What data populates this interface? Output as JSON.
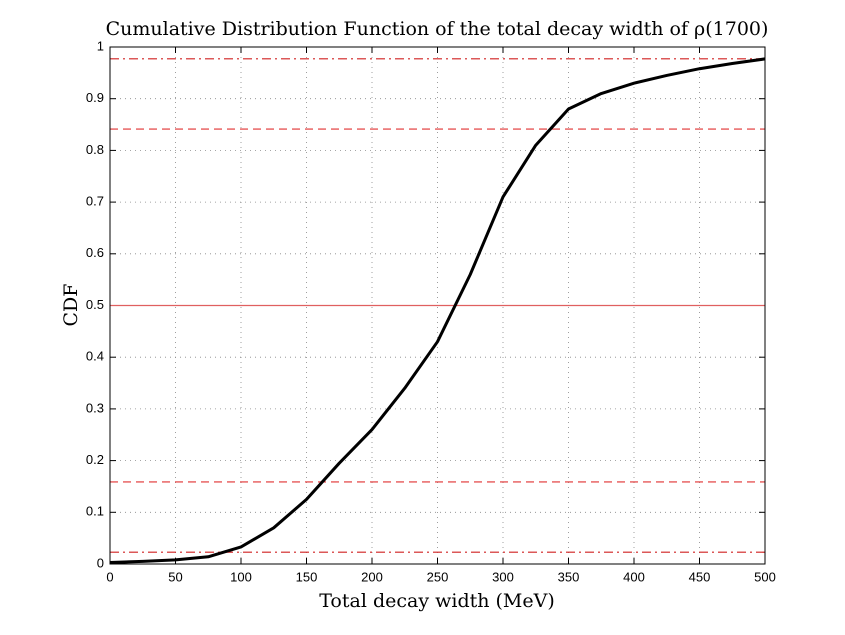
{
  "chart_data": {
    "type": "line",
    "title": "Cumulative Distribution Function of the total decay width of ρ(1700)",
    "xlabel": "Total decay width (MeV)",
    "ylabel": "CDF",
    "x": [
      0,
      25,
      50,
      75,
      100,
      125,
      150,
      175,
      200,
      225,
      250,
      275,
      300,
      325,
      350,
      375,
      400,
      425,
      450,
      475,
      500
    ],
    "values": [
      0.003,
      0.005,
      0.008,
      0.014,
      0.033,
      0.07,
      0.125,
      0.195,
      0.26,
      0.34,
      0.43,
      0.56,
      0.71,
      0.81,
      0.88,
      0.91,
      0.93,
      0.945,
      0.958,
      0.968,
      0.977
    ],
    "color": "#000000",
    "reference_lines": [
      {
        "value": 0.5,
        "style": "solid",
        "color": "#e06060"
      },
      {
        "value": 0.1587,
        "style": "dashed",
        "color": "#e03030"
      },
      {
        "value": 0.8413,
        "style": "dashed",
        "color": "#e03030"
      },
      {
        "value": 0.0228,
        "style": "dashdot",
        "color": "#d02020"
      },
      {
        "value": 0.9772,
        "style": "dashdot",
        "color": "#d02020"
      }
    ],
    "xlim": [
      0,
      500
    ],
    "xticks": [
      0,
      50,
      100,
      150,
      200,
      250,
      300,
      350,
      400,
      450,
      500
    ],
    "ylim": [
      0,
      1
    ],
    "yticks": [
      0,
      0.1,
      0.2,
      0.3,
      0.4,
      0.5,
      0.6,
      0.7,
      0.8,
      0.9,
      1
    ],
    "grid": true
  }
}
